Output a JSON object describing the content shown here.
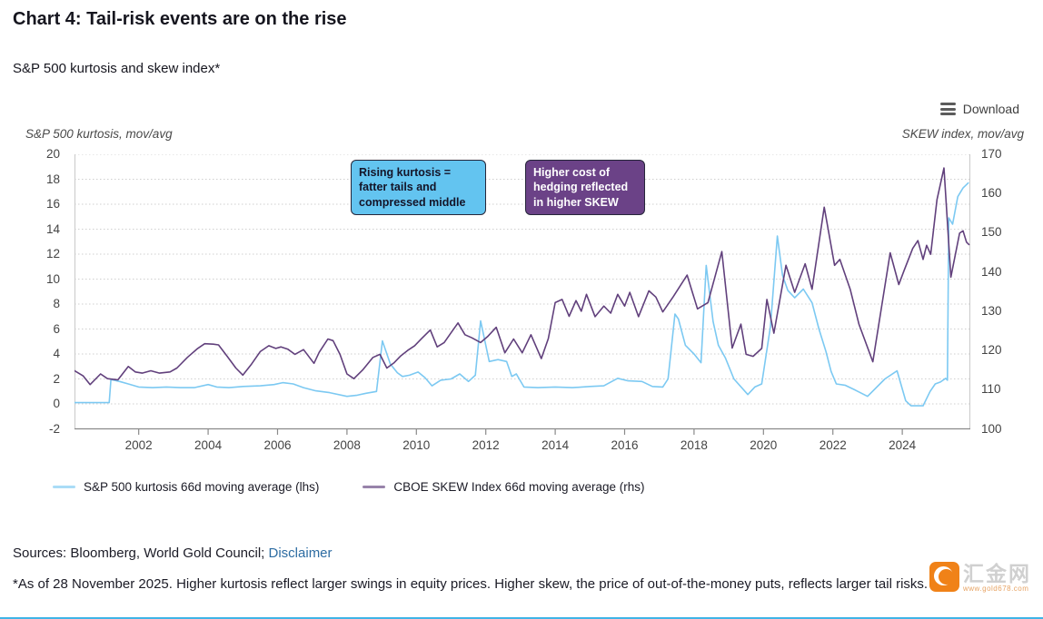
{
  "header": {
    "title": "Chart 4: Tail-risk events are on the rise",
    "subtitle": "S&P 500 kurtosis and skew index*"
  },
  "toolbar": {
    "download_label": "Download",
    "download_icon": "hamburger-menu-icon"
  },
  "chart_data": {
    "type": "line",
    "title": "S&P 500 kurtosis and skew index*",
    "grid": "horizontal dotted gridlines",
    "legend_position": "bottom-left",
    "x_axis": {
      "range": [
        2000.15,
        2025.96
      ],
      "ticks": [
        2002,
        2004,
        2006,
        2008,
        2010,
        2012,
        2014,
        2016,
        2018,
        2020,
        2022,
        2024
      ]
    },
    "left_axis": {
      "label": "S&P 500 kurtosis, mov/avg",
      "range": [
        -2,
        20
      ],
      "ticks": [
        20,
        18,
        16,
        14,
        12,
        10,
        8,
        6,
        4,
        2,
        0,
        -2
      ]
    },
    "right_axis": {
      "label": "SKEW index, mov/avg",
      "range": [
        100,
        170
      ],
      "ticks": [
        170,
        160,
        150,
        140,
        130,
        120,
        110,
        100
      ]
    },
    "series": [
      {
        "name": "S&P 500 kurtosis 66d moving average (lhs)",
        "axis": "left",
        "color": "#7cc9f2",
        "points": [
          [
            2000.15,
            0.1
          ],
          [
            2000.5,
            0.1
          ],
          [
            2000.9,
            0.1
          ],
          [
            2001.15,
            0.1
          ],
          [
            2001.2,
            1.95
          ],
          [
            2001.45,
            1.8
          ],
          [
            2001.7,
            1.6
          ],
          [
            2002.0,
            1.35
          ],
          [
            2002.4,
            1.3
          ],
          [
            2002.8,
            1.35
          ],
          [
            2003.2,
            1.3
          ],
          [
            2003.6,
            1.3
          ],
          [
            2004.0,
            1.55
          ],
          [
            2004.25,
            1.35
          ],
          [
            2004.6,
            1.3
          ],
          [
            2005.0,
            1.4
          ],
          [
            2005.5,
            1.45
          ],
          [
            2005.9,
            1.55
          ],
          [
            2006.15,
            1.7
          ],
          [
            2006.45,
            1.6
          ],
          [
            2006.75,
            1.3
          ],
          [
            2007.1,
            1.05
          ],
          [
            2007.5,
            0.9
          ],
          [
            2008.0,
            0.6
          ],
          [
            2008.3,
            0.7
          ],
          [
            2008.55,
            0.85
          ],
          [
            2008.85,
            1.0
          ],
          [
            2009.02,
            5.05
          ],
          [
            2009.25,
            3.2
          ],
          [
            2009.45,
            2.5
          ],
          [
            2009.6,
            2.2
          ],
          [
            2009.8,
            2.3
          ],
          [
            2010.05,
            2.55
          ],
          [
            2010.25,
            2.1
          ],
          [
            2010.45,
            1.45
          ],
          [
            2010.7,
            1.9
          ],
          [
            2011.0,
            2.0
          ],
          [
            2011.25,
            2.4
          ],
          [
            2011.5,
            1.8
          ],
          [
            2011.7,
            2.3
          ],
          [
            2011.85,
            6.65
          ],
          [
            2012.1,
            3.4
          ],
          [
            2012.35,
            3.55
          ],
          [
            2012.6,
            3.4
          ],
          [
            2012.75,
            2.2
          ],
          [
            2012.88,
            2.4
          ],
          [
            2013.1,
            1.35
          ],
          [
            2013.5,
            1.3
          ],
          [
            2014.0,
            1.35
          ],
          [
            2014.5,
            1.3
          ],
          [
            2015.0,
            1.4
          ],
          [
            2015.4,
            1.45
          ],
          [
            2015.8,
            2.05
          ],
          [
            2016.1,
            1.85
          ],
          [
            2016.5,
            1.8
          ],
          [
            2016.8,
            1.4
          ],
          [
            2017.1,
            1.35
          ],
          [
            2017.25,
            2.0
          ],
          [
            2017.45,
            7.2
          ],
          [
            2017.55,
            6.8
          ],
          [
            2017.75,
            4.7
          ],
          [
            2018.0,
            4.0
          ],
          [
            2018.2,
            3.3
          ],
          [
            2018.35,
            11.1
          ],
          [
            2018.55,
            6.6
          ],
          [
            2018.7,
            4.7
          ],
          [
            2018.9,
            3.7
          ],
          [
            2019.15,
            2.0
          ],
          [
            2019.55,
            0.75
          ],
          [
            2019.75,
            1.35
          ],
          [
            2019.95,
            1.6
          ],
          [
            2020.2,
            6.2
          ],
          [
            2020.4,
            13.45
          ],
          [
            2020.55,
            10.3
          ],
          [
            2020.7,
            9.1
          ],
          [
            2020.9,
            8.5
          ],
          [
            2021.15,
            9.2
          ],
          [
            2021.4,
            8.1
          ],
          [
            2021.6,
            6.0
          ],
          [
            2021.8,
            4.2
          ],
          [
            2021.95,
            2.6
          ],
          [
            2022.1,
            1.6
          ],
          [
            2022.35,
            1.5
          ],
          [
            2022.65,
            1.1
          ],
          [
            2023.0,
            0.6
          ],
          [
            2023.5,
            2.0
          ],
          [
            2023.85,
            2.65
          ],
          [
            2024.1,
            0.25
          ],
          [
            2024.25,
            -0.15
          ],
          [
            2024.6,
            -0.15
          ],
          [
            2024.8,
            1.0
          ],
          [
            2024.95,
            1.6
          ],
          [
            2025.1,
            1.75
          ],
          [
            2025.25,
            2.05
          ],
          [
            2025.3,
            1.9
          ],
          [
            2025.34,
            14.9
          ],
          [
            2025.45,
            14.4
          ],
          [
            2025.6,
            16.6
          ],
          [
            2025.75,
            17.3
          ],
          [
            2025.9,
            17.7
          ]
        ]
      },
      {
        "name": "CBOE SKEW Index 66d moving average (rhs)",
        "axis": "right",
        "color": "#61407c",
        "points": [
          [
            2000.15,
            114.8
          ],
          [
            2000.4,
            113.5
          ],
          [
            2000.6,
            111.3
          ],
          [
            2000.9,
            114.0
          ],
          [
            2001.1,
            112.8
          ],
          [
            2001.4,
            112.5
          ],
          [
            2001.7,
            115.9
          ],
          [
            2001.9,
            114.5
          ],
          [
            2002.1,
            114.2
          ],
          [
            2002.35,
            114.8
          ],
          [
            2002.6,
            114.2
          ],
          [
            2002.9,
            114.5
          ],
          [
            2003.1,
            115.5
          ],
          [
            2003.4,
            118.2
          ],
          [
            2003.7,
            120.5
          ],
          [
            2003.9,
            121.7
          ],
          [
            2004.15,
            121.6
          ],
          [
            2004.3,
            121.4
          ],
          [
            2004.55,
            118.5
          ],
          [
            2004.8,
            115.5
          ],
          [
            2005.0,
            113.7
          ],
          [
            2005.25,
            116.5
          ],
          [
            2005.5,
            119.7
          ],
          [
            2005.75,
            121.2
          ],
          [
            2005.95,
            120.5
          ],
          [
            2006.1,
            120.9
          ],
          [
            2006.3,
            120.3
          ],
          [
            2006.5,
            119.0
          ],
          [
            2006.75,
            120.2
          ],
          [
            2007.05,
            116.7
          ],
          [
            2007.2,
            119.5
          ],
          [
            2007.45,
            122.9
          ],
          [
            2007.6,
            122.5
          ],
          [
            2007.8,
            119.0
          ],
          [
            2008.0,
            114.0
          ],
          [
            2008.2,
            112.8
          ],
          [
            2008.45,
            115.0
          ],
          [
            2008.75,
            118.2
          ],
          [
            2008.95,
            119.0
          ],
          [
            2009.15,
            115.5
          ],
          [
            2009.35,
            116.8
          ],
          [
            2009.55,
            118.6
          ],
          [
            2009.75,
            120.0
          ],
          [
            2009.95,
            121.2
          ],
          [
            2010.15,
            123.0
          ],
          [
            2010.4,
            125.2
          ],
          [
            2010.6,
            120.9
          ],
          [
            2010.8,
            122.0
          ],
          [
            2011.0,
            124.5
          ],
          [
            2011.2,
            127.0
          ],
          [
            2011.4,
            124.0
          ],
          [
            2011.6,
            123.2
          ],
          [
            2011.85,
            122.0
          ],
          [
            2012.05,
            123.5
          ],
          [
            2012.3,
            125.9
          ],
          [
            2012.55,
            119.4
          ],
          [
            2012.8,
            122.9
          ],
          [
            2013.05,
            119.4
          ],
          [
            2013.3,
            124.0
          ],
          [
            2013.6,
            117.9
          ],
          [
            2013.8,
            123.0
          ],
          [
            2014.0,
            132.2
          ],
          [
            2014.2,
            133.0
          ],
          [
            2014.4,
            128.7
          ],
          [
            2014.6,
            132.7
          ],
          [
            2014.75,
            130.0
          ],
          [
            2014.9,
            134.3
          ],
          [
            2015.15,
            128.6
          ],
          [
            2015.4,
            131.3
          ],
          [
            2015.6,
            129.5
          ],
          [
            2015.8,
            134.3
          ],
          [
            2016.0,
            131.3
          ],
          [
            2016.15,
            134.8
          ],
          [
            2016.4,
            128.6
          ],
          [
            2016.7,
            135.2
          ],
          [
            2016.9,
            133.6
          ],
          [
            2017.1,
            129.8
          ],
          [
            2017.4,
            133.7
          ],
          [
            2017.8,
            139.2
          ],
          [
            2018.1,
            130.6
          ],
          [
            2018.4,
            132.2
          ],
          [
            2018.8,
            145.2
          ],
          [
            2019.1,
            120.6
          ],
          [
            2019.35,
            126.7
          ],
          [
            2019.5,
            119.0
          ],
          [
            2019.7,
            118.5
          ],
          [
            2019.95,
            120.5
          ],
          [
            2020.1,
            133.0
          ],
          [
            2020.3,
            124.4
          ],
          [
            2020.65,
            141.7
          ],
          [
            2020.9,
            134.8
          ],
          [
            2021.2,
            142.1
          ],
          [
            2021.4,
            135.6
          ],
          [
            2021.75,
            156.5
          ],
          [
            2022.05,
            141.7
          ],
          [
            2022.2,
            143.2
          ],
          [
            2022.5,
            135.6
          ],
          [
            2022.75,
            126.7
          ],
          [
            2023.15,
            117.1
          ],
          [
            2023.65,
            144.9
          ],
          [
            2023.9,
            136.8
          ],
          [
            2024.05,
            140.3
          ],
          [
            2024.3,
            146.0
          ],
          [
            2024.45,
            148.0
          ],
          [
            2024.6,
            143.2
          ],
          [
            2024.7,
            146.8
          ],
          [
            2024.82,
            144.5
          ],
          [
            2025.0,
            158.4
          ],
          [
            2025.2,
            166.5
          ],
          [
            2025.4,
            138.7
          ],
          [
            2025.65,
            149.9
          ],
          [
            2025.75,
            150.5
          ],
          [
            2025.85,
            147.6
          ],
          [
            2025.92,
            147.0
          ]
        ]
      }
    ],
    "annotations": [
      {
        "text": "Rising kurtosis =\nfatter tails and\ncompressed middle",
        "fill": "#63c4f0",
        "border": "#26263a",
        "text_color": "#141428"
      },
      {
        "text": "Higher cost of\nhedging reflected\nin higher SKEW",
        "fill": "#6b4287",
        "border": "#26263a",
        "text_color": "#ffffff"
      }
    ]
  },
  "footer": {
    "sources_prefix": "Sources: Bloomberg, World Gold Council; ",
    "disclaimer_link": "Disclaimer",
    "footnote": "*As of 28 November 2025. Higher kurtosis reflect larger swings in equity prices. Higher skew, the price of out-of-the-money puts, reflects larger tail risks."
  },
  "watermark": {
    "site_name": "汇金网",
    "url": "www.gold678.com"
  }
}
